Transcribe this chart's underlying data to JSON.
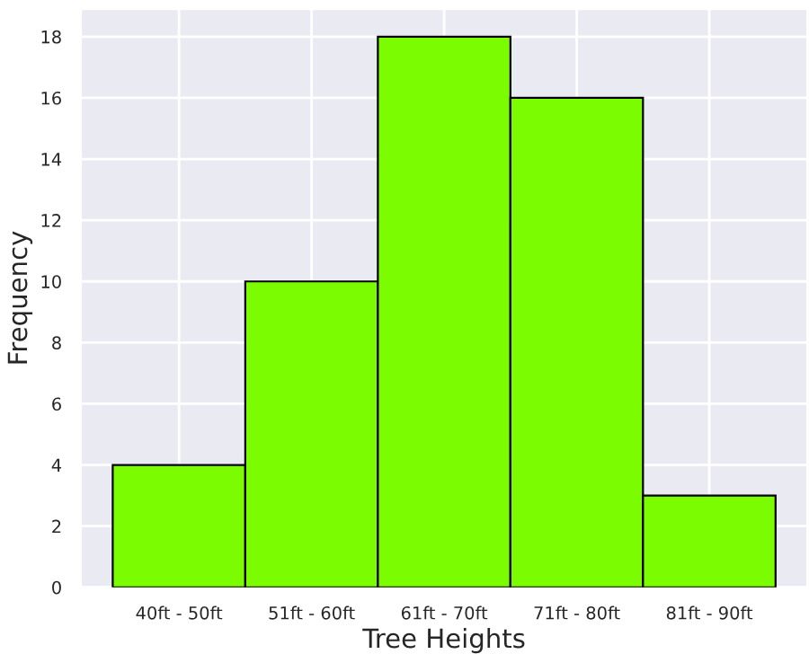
{
  "chart_data": {
    "type": "bar",
    "xlabel": "Tree Heights",
    "ylabel": "Frequency",
    "categories": [
      "40ft - 50ft",
      "51ft - 60ft",
      "61ft - 70ft",
      "71ft - 80ft",
      "81ft - 90ft"
    ],
    "values": [
      4,
      10,
      18,
      16,
      3
    ],
    "color": "#7cfc00",
    "ylim": [
      0,
      18.9
    ],
    "yticks": [
      0,
      2,
      4,
      6,
      8,
      10,
      12,
      14,
      16,
      18
    ],
    "grid": true
  }
}
